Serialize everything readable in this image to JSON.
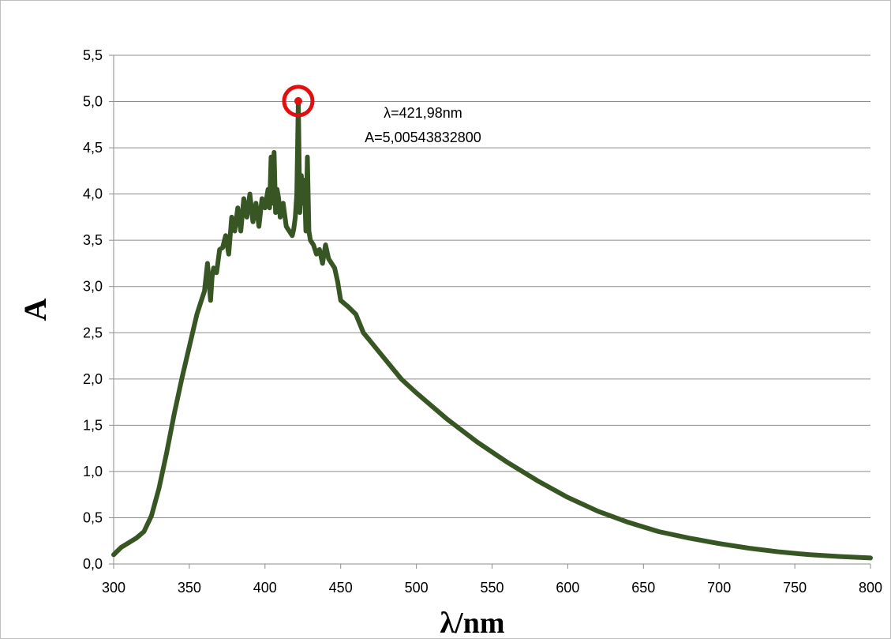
{
  "chart_data": {
    "type": "line",
    "xlabel": "λ/nm",
    "ylabel": "A",
    "xlim": [
      300,
      800
    ],
    "ylim": [
      0,
      5.5
    ],
    "x_ticks": [
      "300",
      "350",
      "400",
      "450",
      "500",
      "550",
      "600",
      "650",
      "700",
      "750",
      "800"
    ],
    "y_ticks": [
      "0,0",
      "0,5",
      "1,0",
      "1,5",
      "2,0",
      "2,5",
      "3,0",
      "3,5",
      "4,0",
      "4,5",
      "5,0",
      "5,5"
    ],
    "grid": "horizontal",
    "legend": "none",
    "series": [
      {
        "color": "#375623",
        "x": [
          300,
          305,
          310,
          315,
          320,
          325,
          330,
          335,
          340,
          345,
          350,
          355,
          358,
          360,
          362,
          364,
          365,
          366,
          368,
          370,
          372,
          374,
          376,
          378,
          380,
          382,
          384,
          386,
          388,
          390,
          392,
          394,
          396,
          398,
          400,
          402,
          403,
          404,
          405,
          406,
          407,
          408,
          409,
          410,
          411,
          412,
          414,
          416,
          418,
          419,
          420,
          421,
          421.98,
          423,
          424,
          425,
          426,
          427,
          428,
          429,
          430,
          432,
          434,
          436,
          438,
          440,
          442,
          444,
          446,
          448,
          450,
          455,
          460,
          465,
          470,
          480,
          490,
          500,
          520,
          540,
          560,
          580,
          600,
          620,
          640,
          660,
          680,
          700,
          720,
          740,
          760,
          780,
          800
        ],
        "y": [
          0.1,
          0.18,
          0.23,
          0.28,
          0.35,
          0.52,
          0.82,
          1.2,
          1.62,
          2.0,
          2.35,
          2.7,
          2.85,
          2.95,
          3.25,
          2.85,
          3.1,
          3.2,
          3.15,
          3.4,
          3.42,
          3.55,
          3.35,
          3.75,
          3.6,
          3.85,
          3.6,
          3.95,
          3.75,
          4.0,
          3.7,
          3.9,
          3.65,
          3.95,
          3.85,
          4.05,
          3.85,
          4.4,
          3.9,
          4.45,
          3.8,
          4.05,
          3.95,
          3.75,
          3.85,
          3.9,
          3.65,
          3.6,
          3.55,
          3.62,
          3.75,
          4.0,
          5.005,
          3.8,
          4.2,
          3.9,
          4.15,
          3.6,
          4.4,
          3.6,
          3.5,
          3.45,
          3.35,
          3.4,
          3.25,
          3.45,
          3.3,
          3.25,
          3.2,
          3.05,
          2.85,
          2.78,
          2.7,
          2.5,
          2.4,
          2.2,
          2.0,
          1.85,
          1.57,
          1.32,
          1.1,
          0.9,
          0.72,
          0.57,
          0.45,
          0.35,
          0.28,
          0.22,
          0.17,
          0.13,
          0.1,
          0.08,
          0.065
        ]
      }
    ],
    "annotations": [
      {
        "marker": "circled-peak",
        "x": 421.98,
        "y": 5.005438328,
        "lines": [
          "λ=421,98nm",
          "A=5,00543832800"
        ],
        "marker_color": "#e01010"
      }
    ]
  }
}
